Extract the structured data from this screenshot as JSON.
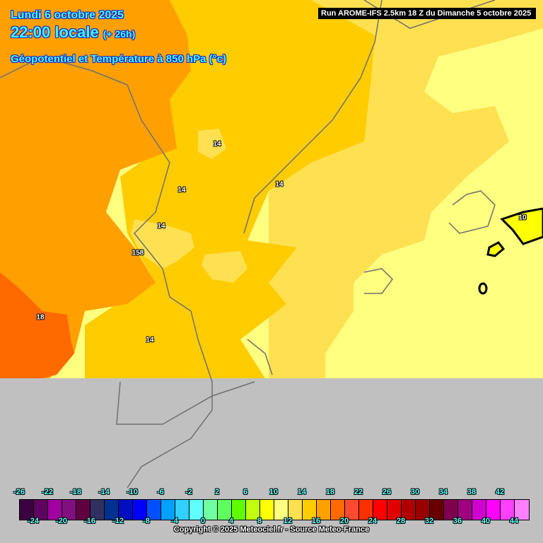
{
  "header": {
    "date": "Lundi 6 octobre 2025",
    "time": "22:00 locale",
    "lead": "(+ 26h)",
    "title": "Géopotentiel et Température à 850 hPa (°c)",
    "run": "Run AROME-IFS 2.5km 18 Z du Dimanche 5 octobre 2025"
  },
  "map": {
    "contour_labels": [
      "14",
      "14",
      "14",
      "14",
      "14",
      "158",
      "18",
      "10"
    ]
  },
  "legend": {
    "colors": [
      "#3a0040",
      "#600060",
      "#a000a0",
      "#801080",
      "#600040",
      "#303060",
      "#003090",
      "#0010c0",
      "#0000ff",
      "#0050ff",
      "#00a0ff",
      "#30d0ff",
      "#60ffff",
      "#70ffa0",
      "#60ff60",
      "#60ff00",
      "#c0ff10",
      "#ffff00",
      "#ffff80",
      "#ffe050",
      "#ffcc00",
      "#ffa000",
      "#ff6a00",
      "#ff4a30",
      "#ff3000",
      "#ff0000",
      "#e00000",
      "#b00000",
      "#980000",
      "#680000",
      "#800050",
      "#a00080",
      "#d000d0",
      "#ff00ff",
      "#ff40ff",
      "#ff80ff"
    ],
    "top_ticks": [
      "-26",
      "-22",
      "-18",
      "-14",
      "-10",
      "-6",
      "-2",
      "2",
      "6",
      "10",
      "14",
      "18",
      "22",
      "26",
      "30",
      "34",
      "38",
      "42"
    ],
    "bottom_ticks": [
      "-24",
      "-20",
      "-16",
      "-12",
      "-8",
      "-4",
      "0",
      "4",
      "8",
      "12",
      "16",
      "20",
      "24",
      "28",
      "32",
      "36",
      "40",
      "44"
    ]
  },
  "footer": {
    "copyright": "Copyright © 2025 Meteociel.fr - Source Meteo-France"
  }
}
